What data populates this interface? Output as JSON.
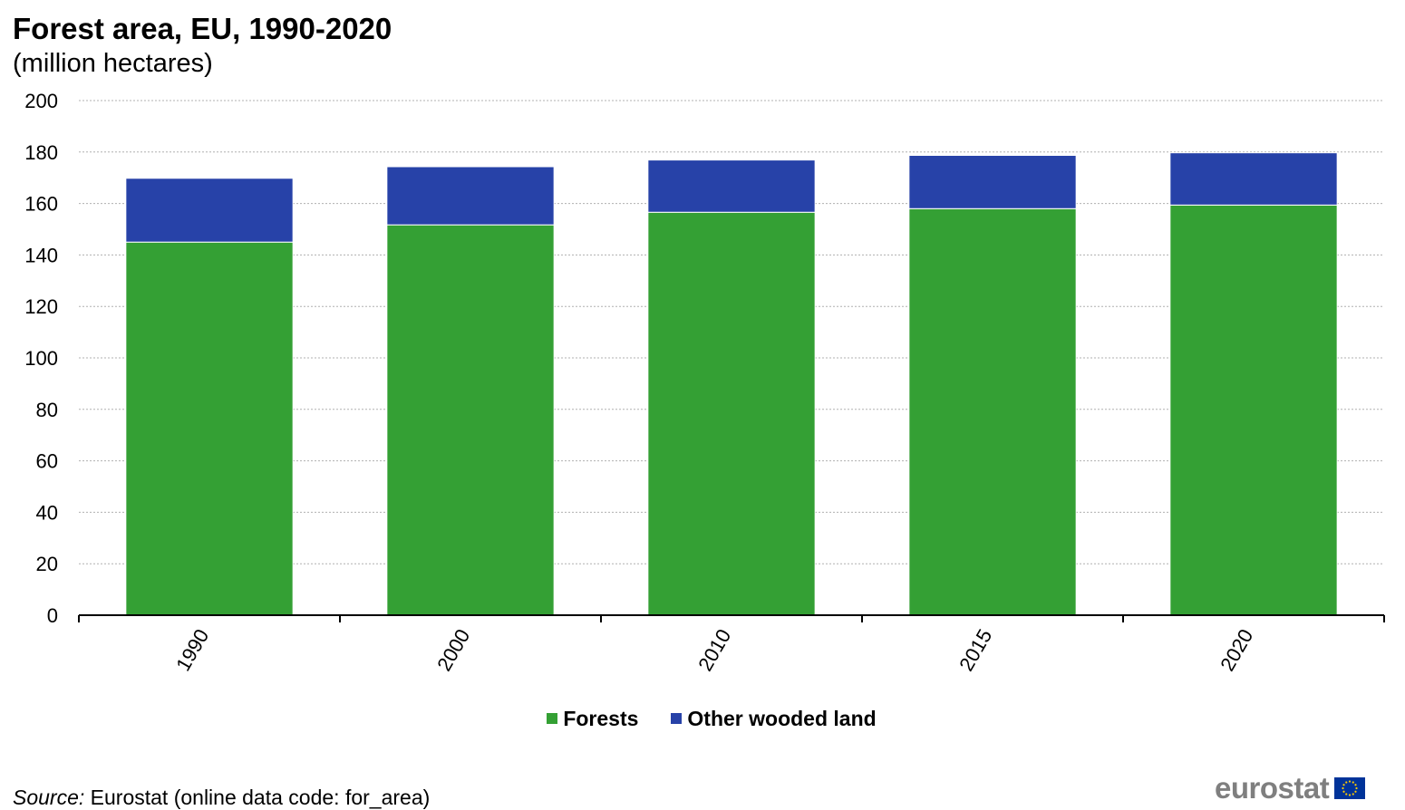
{
  "title": "Forest area, EU, 1990-2020",
  "subtitle": "(million hectares)",
  "chart_data": {
    "type": "bar",
    "stacked": true,
    "categories": [
      "1990",
      "2000",
      "2010",
      "2015",
      "2020"
    ],
    "series": [
      {
        "name": "Forests",
        "values": [
          145,
          151.7,
          156.6,
          158,
          159.4
        ],
        "color": "#34A034"
      },
      {
        "name": "Other wooded land",
        "values": [
          24.8,
          22.6,
          20.3,
          20.7,
          20.3
        ],
        "color": "#2742A8"
      }
    ],
    "ylim": [
      0,
      200
    ],
    "yticks": [
      0,
      20,
      40,
      60,
      80,
      100,
      120,
      140,
      160,
      180,
      200
    ],
    "grid": true,
    "legend_position": "bottom"
  },
  "source": {
    "label": "Source:",
    "text": "Eurostat (online data code: for_area)"
  },
  "logo": {
    "text": "eurostat",
    "color": "#7f7f7f"
  }
}
